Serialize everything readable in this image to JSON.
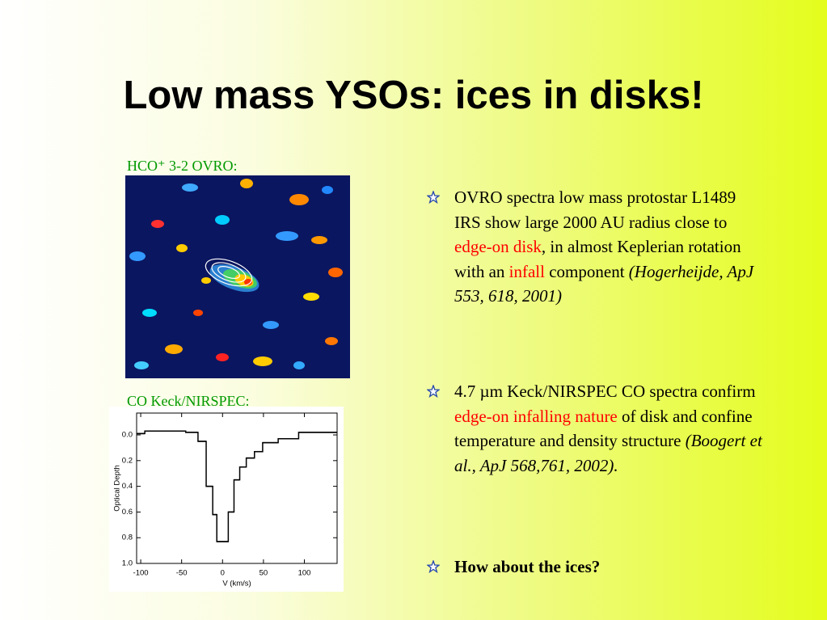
{
  "title": "Low mass YSOs: ices in disks!",
  "figures": [
    {
      "caption": "HCO⁺ 3-2 OVRO:"
    },
    {
      "caption": "CO Keck/NIRSPEC:"
    }
  ],
  "bullets": [
    {
      "segments": [
        {
          "text": "OVRO spectra low mass protostar L1489 IRS show large 2000 AU radius close to ",
          "style": "normal"
        },
        {
          "text": "edge-on disk",
          "style": "red"
        },
        {
          "text": ", in almost Keplerian rotation with an ",
          "style": "normal"
        },
        {
          "text": "infall",
          "style": "red"
        },
        {
          "text": " component ",
          "style": "normal"
        },
        {
          "text": "(Hogerheijde, ApJ 553, 618, 2001)",
          "style": "italic"
        }
      ]
    },
    {
      "segments": [
        {
          "text": "4.7 µm Keck/NIRSPEC CO spectra confirm ",
          "style": "normal"
        },
        {
          "text": "edge-on infalling nature",
          "style": "red"
        },
        {
          "text": " of disk and confine temperature and density structure ",
          "style": "normal"
        },
        {
          "text": "(Boogert et al., ApJ 568,761, 2002).",
          "style": "italic"
        }
      ]
    },
    {
      "segments": [
        {
          "text": "How about the ices?",
          "style": "bold"
        }
      ]
    }
  ],
  "chart_data": {
    "type": "step",
    "xlabel": "V (km/s)",
    "ylabel": "Optical Depth",
    "x": [
      -105,
      -95,
      -45,
      -30,
      -20,
      -12,
      -7,
      7,
      14,
      21,
      29,
      39,
      49,
      68,
      93
    ],
    "values": [
      -0.01,
      -0.03,
      -0.02,
      0.05,
      0.4,
      0.62,
      0.83,
      0.6,
      0.35,
      0.25,
      0.18,
      0.13,
      0.06,
      0.03,
      -0.02
    ],
    "color": "#000000",
    "xlim": [
      -105,
      140
    ],
    "ylim": [
      1.0,
      -0.17
    ],
    "xticks": [
      -100,
      -50,
      0,
      50,
      100
    ],
    "yticks": [
      {
        "value": 0.0,
        "label": "0.0"
      },
      0.2,
      0.4,
      0.6,
      0.8,
      {
        "value": 1.0,
        "label": "1.0"
      }
    ]
  }
}
